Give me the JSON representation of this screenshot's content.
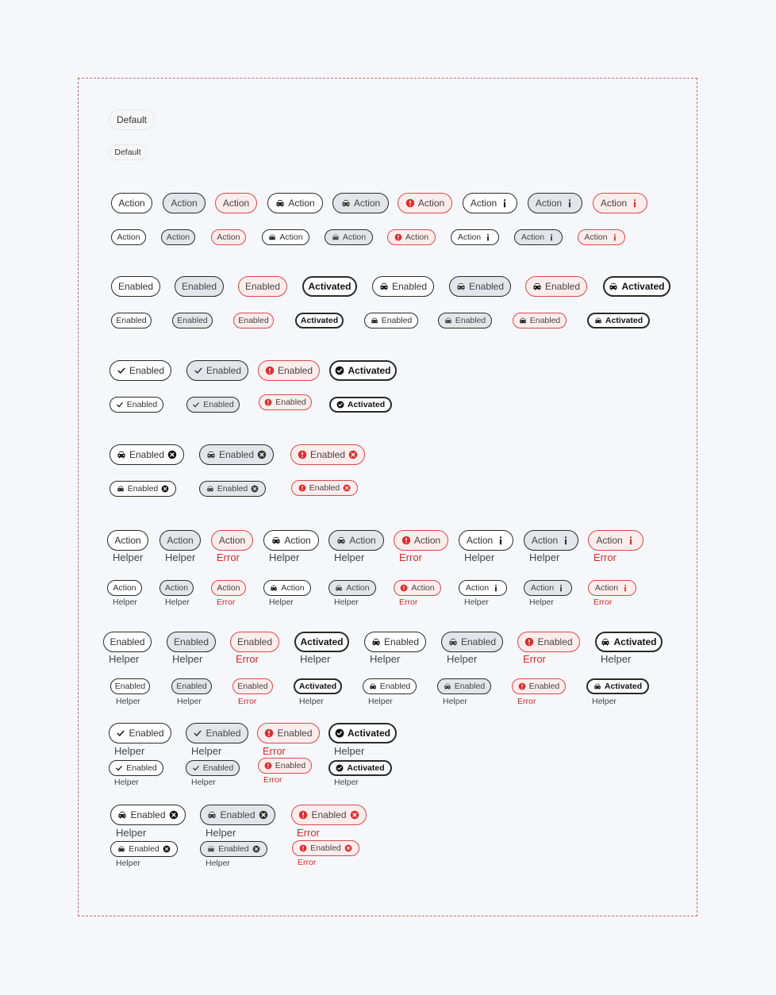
{
  "labels": {
    "default": "Default",
    "action": "Action",
    "enabled": "Enabled",
    "activated": "Activated",
    "helper": "Helper",
    "error": "Error"
  },
  "colors": {
    "frame_border": "#c76b6b",
    "chip_border": "#2a2a2a",
    "chip_gray_fill": "#e3e5ea",
    "error_fill": "#fdecec",
    "error_border": "#d84a4a",
    "error_text": "#d42b2b",
    "background": "#f6f7fb"
  },
  "icons": {
    "car": "car-icon",
    "error": "error-circle-icon",
    "info": "info-icon",
    "check": "check-icon",
    "check_filled": "check-circle-icon",
    "remove": "close-circle-icon"
  }
}
